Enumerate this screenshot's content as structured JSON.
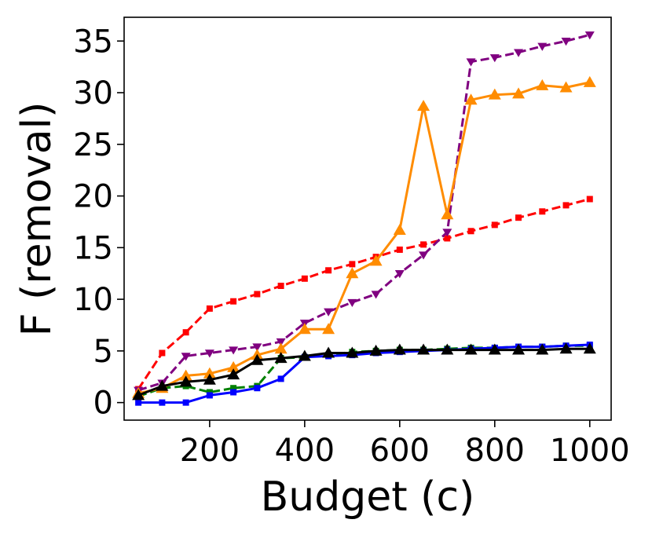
{
  "chart_data": {
    "type": "line",
    "title": "",
    "xlabel": "Budget (c)",
    "ylabel": "F (removal)",
    "xlim": [
      20,
      1045
    ],
    "ylim": [
      -1.7,
      37.3
    ],
    "xticks": [
      200,
      400,
      600,
      800,
      1000
    ],
    "yticks": [
      0,
      5,
      10,
      15,
      20,
      25,
      30,
      35
    ],
    "grid": false,
    "legend": "none",
    "x": [
      50,
      100,
      150,
      200,
      250,
      300,
      350,
      400,
      450,
      500,
      550,
      600,
      650,
      700,
      750,
      800,
      850,
      900,
      950,
      1000
    ],
    "series": [
      {
        "color": "#ff0000",
        "dash": "dashed",
        "marker": "square",
        "values": [
          1.3,
          4.8,
          6.8,
          9.1,
          9.8,
          10.5,
          11.3,
          12.0,
          12.8,
          13.4,
          14.1,
          14.8,
          15.3,
          15.9,
          16.6,
          17.2,
          17.9,
          18.5,
          19.1,
          19.7
        ]
      },
      {
        "color": "#800080",
        "dash": "dashed",
        "marker": "triangle-down",
        "values": [
          1.2,
          1.9,
          4.5,
          4.8,
          5.1,
          5.4,
          5.9,
          7.7,
          8.8,
          9.7,
          10.5,
          12.5,
          14.3,
          16.5,
          33.0,
          33.4,
          33.9,
          34.5,
          35.0,
          35.6
        ]
      },
      {
        "color": "#008000",
        "dash": "dashed",
        "marker": "square",
        "values": [
          0.6,
          1.4,
          1.6,
          1.0,
          1.4,
          1.6,
          4.3,
          4.4,
          4.6,
          4.9,
          5.0,
          5.1,
          5.1,
          5.2,
          5.3,
          5.3,
          5.4,
          5.4,
          5.5,
          5.5
        ]
      },
      {
        "color": "#0000ff",
        "dash": "solid",
        "marker": "square",
        "values": [
          0.0,
          0.0,
          0.0,
          0.7,
          1.0,
          1.4,
          2.3,
          4.4,
          4.5,
          4.6,
          4.8,
          4.9,
          5.0,
          5.1,
          5.2,
          5.3,
          5.4,
          5.4,
          5.5,
          5.6
        ]
      },
      {
        "color": "#ff8c00",
        "dash": "solid",
        "marker": "triangle-up",
        "values": [
          0.9,
          1.4,
          2.6,
          2.8,
          3.4,
          4.6,
          5.2,
          7.1,
          7.1,
          12.5,
          13.7,
          16.7,
          28.7,
          18.2,
          29.3,
          29.8,
          29.9,
          30.7,
          30.5,
          31.0
        ]
      },
      {
        "color": "#000000",
        "dash": "solid",
        "marker": "triangle-up",
        "values": [
          0.7,
          1.6,
          2.0,
          2.2,
          2.7,
          4.1,
          4.3,
          4.5,
          4.8,
          4.8,
          5.0,
          5.1,
          5.1,
          5.1,
          5.1,
          5.1,
          5.1,
          5.1,
          5.2,
          5.2
        ]
      }
    ]
  }
}
